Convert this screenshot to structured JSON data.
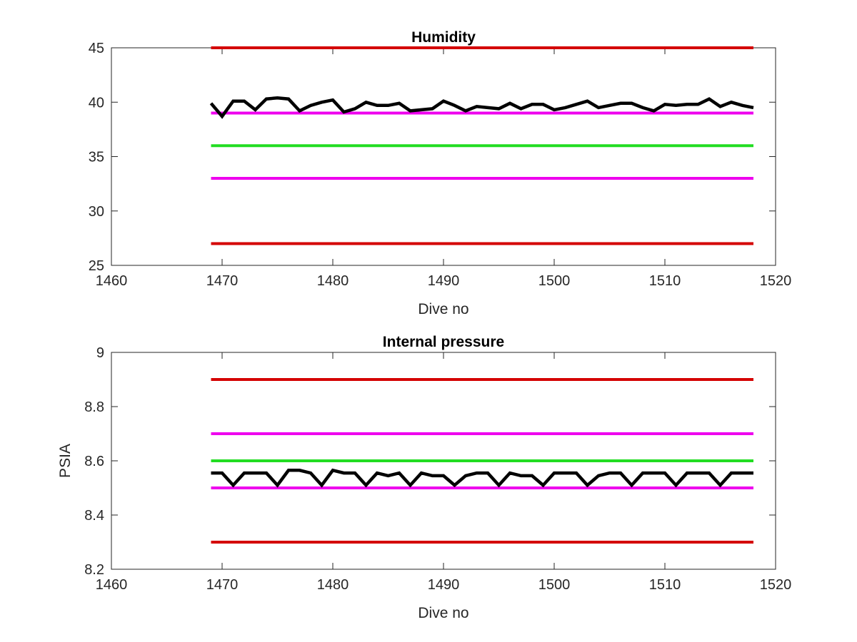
{
  "chart_data": [
    {
      "type": "line",
      "title": "Humidity",
      "xlabel": "Dive no",
      "ylabel": "",
      "xlim": [
        1460,
        1520
      ],
      "ylim": [
        25,
        45
      ],
      "xticks": [
        "1460",
        "1470",
        "1480",
        "1490",
        "1500",
        "1510",
        "1520"
      ],
      "yticks": [
        "25",
        "30",
        "35",
        "40",
        "45"
      ],
      "grid": false,
      "legend": "none",
      "series": [
        {
          "color": "#d40000",
          "x": [
            1469,
            1518
          ],
          "y": [
            45,
            45
          ]
        },
        {
          "color": "#ee00ee",
          "x": [
            1469,
            1518
          ],
          "y": [
            39,
            39
          ]
        },
        {
          "color": "#22dd22",
          "x": [
            1469,
            1518
          ],
          "y": [
            36,
            36
          ]
        },
        {
          "color": "#ee00ee",
          "x": [
            1469,
            1518
          ],
          "y": [
            33,
            33
          ]
        },
        {
          "color": "#d40000",
          "x": [
            1469,
            1518
          ],
          "y": [
            27,
            27
          ]
        },
        {
          "color": "#000000",
          "x": [
            1469,
            1470,
            1471,
            1472,
            1473,
            1474,
            1475,
            1476,
            1477,
            1478,
            1479,
            1480,
            1481,
            1482,
            1483,
            1484,
            1485,
            1486,
            1487,
            1488,
            1489,
            1490,
            1491,
            1492,
            1493,
            1494,
            1495,
            1496,
            1497,
            1498,
            1499,
            1500,
            1501,
            1502,
            1503,
            1504,
            1505,
            1506,
            1507,
            1508,
            1509,
            1510,
            1511,
            1512,
            1513,
            1514,
            1515,
            1516,
            1517,
            1518
          ],
          "y": [
            39.9,
            38.7,
            40.1,
            40.1,
            39.3,
            40.3,
            40.4,
            40.3,
            39.2,
            39.7,
            40.0,
            40.2,
            39.1,
            39.4,
            40.0,
            39.7,
            39.7,
            39.9,
            39.2,
            39.3,
            39.4,
            40.1,
            39.7,
            39.2,
            39.6,
            39.5,
            39.4,
            39.9,
            39.4,
            39.8,
            39.8,
            39.3,
            39.5,
            39.8,
            40.1,
            39.5,
            39.7,
            39.9,
            39.9,
            39.5,
            39.2,
            39.8,
            39.7,
            39.8,
            39.8,
            40.3,
            39.6,
            40.0,
            39.7,
            39.5
          ]
        }
      ]
    },
    {
      "type": "line",
      "title": "Internal pressure",
      "xlabel": "Dive no",
      "ylabel": "PSIA",
      "xlim": [
        1460,
        1520
      ],
      "ylim": [
        8.2,
        9.0
      ],
      "xticks": [
        "1460",
        "1470",
        "1480",
        "1490",
        "1500",
        "1510",
        "1520"
      ],
      "yticks": [
        "8.2",
        "8.4",
        "8.6",
        "8.8",
        "9"
      ],
      "grid": false,
      "legend": "none",
      "series": [
        {
          "color": "#d40000",
          "x": [
            1469,
            1518
          ],
          "y": [
            8.9,
            8.9
          ]
        },
        {
          "color": "#ee00ee",
          "x": [
            1469,
            1518
          ],
          "y": [
            8.7,
            8.7
          ]
        },
        {
          "color": "#22dd22",
          "x": [
            1469,
            1518
          ],
          "y": [
            8.6,
            8.6
          ]
        },
        {
          "color": "#ee00ee",
          "x": [
            1469,
            1518
          ],
          "y": [
            8.5,
            8.5
          ]
        },
        {
          "color": "#d40000",
          "x": [
            1469,
            1518
          ],
          "y": [
            8.3,
            8.3
          ]
        },
        {
          "color": "#000000",
          "x": [
            1469,
            1470,
            1471,
            1472,
            1473,
            1474,
            1475,
            1476,
            1477,
            1478,
            1479,
            1480,
            1481,
            1482,
            1483,
            1484,
            1485,
            1486,
            1487,
            1488,
            1489,
            1490,
            1491,
            1492,
            1493,
            1494,
            1495,
            1496,
            1497,
            1498,
            1499,
            1500,
            1501,
            1502,
            1503,
            1504,
            1505,
            1506,
            1507,
            1508,
            1509,
            1510,
            1511,
            1512,
            1513,
            1514,
            1515,
            1516,
            1517,
            1518
          ],
          "y": [
            8.555,
            8.555,
            8.51,
            8.555,
            8.555,
            8.555,
            8.51,
            8.565,
            8.565,
            8.555,
            8.51,
            8.565,
            8.555,
            8.555,
            8.51,
            8.555,
            8.545,
            8.555,
            8.51,
            8.555,
            8.545,
            8.545,
            8.51,
            8.545,
            8.555,
            8.555,
            8.51,
            8.555,
            8.545,
            8.545,
            8.51,
            8.555,
            8.555,
            8.555,
            8.51,
            8.545,
            8.555,
            8.555,
            8.51,
            8.555,
            8.555,
            8.555,
            8.51,
            8.555,
            8.555,
            8.555,
            8.51,
            8.555,
            8.555,
            8.555
          ]
        }
      ]
    }
  ]
}
